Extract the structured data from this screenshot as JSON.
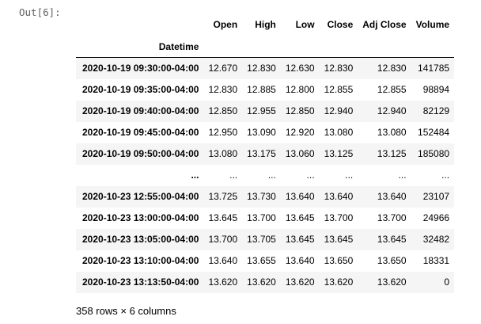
{
  "cell": {
    "out_prompt": "Out[6]:"
  },
  "table": {
    "columns": [
      "Open",
      "High",
      "Low",
      "Close",
      "Adj Close",
      "Volume"
    ],
    "index_name": "Datetime",
    "rows": [
      {
        "index": "2020-10-19 09:30:00-04:00",
        "values": [
          "12.670",
          "12.830",
          "12.630",
          "12.830",
          "12.830",
          "141785"
        ]
      },
      {
        "index": "2020-10-19 09:35:00-04:00",
        "values": [
          "12.830",
          "12.885",
          "12.800",
          "12.855",
          "12.855",
          "98894"
        ]
      },
      {
        "index": "2020-10-19 09:40:00-04:00",
        "values": [
          "12.850",
          "12.955",
          "12.850",
          "12.940",
          "12.940",
          "82129"
        ]
      },
      {
        "index": "2020-10-19 09:45:00-04:00",
        "values": [
          "12.950",
          "13.090",
          "12.920",
          "13.080",
          "13.080",
          "152484"
        ]
      },
      {
        "index": "2020-10-19 09:50:00-04:00",
        "values": [
          "13.080",
          "13.175",
          "13.060",
          "13.125",
          "13.125",
          "185080"
        ]
      },
      {
        "index": "...",
        "values": [
          "...",
          "...",
          "...",
          "...",
          "...",
          "..."
        ]
      },
      {
        "index": "2020-10-23 12:55:00-04:00",
        "values": [
          "13.725",
          "13.730",
          "13.640",
          "13.640",
          "13.640",
          "23107"
        ]
      },
      {
        "index": "2020-10-23 13:00:00-04:00",
        "values": [
          "13.645",
          "13.700",
          "13.645",
          "13.700",
          "13.700",
          "24966"
        ]
      },
      {
        "index": "2020-10-23 13:05:00-04:00",
        "values": [
          "13.700",
          "13.705",
          "13.645",
          "13.645",
          "13.645",
          "32482"
        ]
      },
      {
        "index": "2020-10-23 13:10:00-04:00",
        "values": [
          "13.640",
          "13.655",
          "13.640",
          "13.650",
          "13.650",
          "18331"
        ]
      },
      {
        "index": "2020-10-23 13:13:50-04:00",
        "values": [
          "13.620",
          "13.620",
          "13.620",
          "13.620",
          "13.620",
          "0"
        ]
      }
    ],
    "shape_text": "358 rows × 6 columns"
  }
}
